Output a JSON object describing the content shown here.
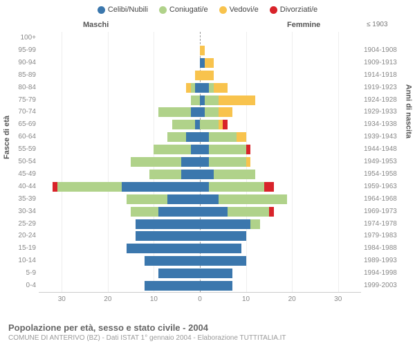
{
  "legend": [
    {
      "label": "Celibi/Nubili",
      "color": "#3b77ad"
    },
    {
      "label": "Coniugati/e",
      "color": "#b0d28a"
    },
    {
      "label": "Vedovi/e",
      "color": "#f8c34d"
    },
    {
      "label": "Divorziati/e",
      "color": "#d8232a"
    }
  ],
  "header": {
    "male": "Maschi",
    "female": "Femmine",
    "birth_top": "≤ 1903"
  },
  "y_title_left": "Fasce di età",
  "y_title_right": "Anni di nascita",
  "x_ticks": [
    30,
    20,
    10,
    0,
    10,
    20,
    30
  ],
  "x_max": 35,
  "title": "Popolazione per età, sesso e stato civile - 2004",
  "subtitle": "COMUNE DI ANTERIVO (BZ) - Dati ISTAT 1° gennaio 2004 - Elaborazione TUTTITALIA.IT",
  "colors": {
    "single": "#3b77ad",
    "married": "#b0d28a",
    "widowed": "#f8c34d",
    "divorced": "#d8232a"
  },
  "rows": [
    {
      "age": "100+",
      "birth": "",
      "m": [
        0,
        0,
        0,
        0
      ],
      "f": [
        0,
        0,
        0,
        0
      ]
    },
    {
      "age": "95-99",
      "birth": "1904-1908",
      "m": [
        0,
        0,
        0,
        0
      ],
      "f": [
        0,
        0,
        1,
        0
      ]
    },
    {
      "age": "90-94",
      "birth": "1909-1913",
      "m": [
        0,
        0,
        0,
        0
      ],
      "f": [
        1,
        0,
        2,
        0
      ]
    },
    {
      "age": "85-89",
      "birth": "1914-1918",
      "m": [
        0,
        0,
        1,
        0
      ],
      "f": [
        0,
        0,
        3,
        0
      ]
    },
    {
      "age": "80-84",
      "birth": "1919-1923",
      "m": [
        1,
        1,
        1,
        0
      ],
      "f": [
        2,
        1,
        3,
        0
      ]
    },
    {
      "age": "75-79",
      "birth": "1924-1928",
      "m": [
        0,
        2,
        0,
        0
      ],
      "f": [
        1,
        3,
        8,
        0
      ]
    },
    {
      "age": "70-74",
      "birth": "1929-1933",
      "m": [
        2,
        7,
        0,
        0
      ],
      "f": [
        1,
        3,
        3,
        0
      ]
    },
    {
      "age": "65-69",
      "birth": "1934-1938",
      "m": [
        1,
        5,
        0,
        0
      ],
      "f": [
        0,
        4,
        1,
        1
      ]
    },
    {
      "age": "60-64",
      "birth": "1939-1943",
      "m": [
        3,
        4,
        0,
        0
      ],
      "f": [
        2,
        6,
        2,
        0
      ]
    },
    {
      "age": "55-59",
      "birth": "1944-1948",
      "m": [
        2,
        8,
        0,
        0
      ],
      "f": [
        2,
        8,
        0,
        1
      ]
    },
    {
      "age": "50-54",
      "birth": "1949-1953",
      "m": [
        4,
        11,
        0,
        0
      ],
      "f": [
        2,
        8,
        1,
        0
      ]
    },
    {
      "age": "45-49",
      "birth": "1954-1958",
      "m": [
        4,
        7,
        0,
        0
      ],
      "f": [
        3,
        9,
        0,
        0
      ]
    },
    {
      "age": "40-44",
      "birth": "1959-1963",
      "m": [
        17,
        14,
        0,
        1
      ],
      "f": [
        2,
        12,
        0,
        2
      ]
    },
    {
      "age": "35-39",
      "birth": "1964-1968",
      "m": [
        7,
        9,
        0,
        0
      ],
      "f": [
        4,
        15,
        0,
        0
      ]
    },
    {
      "age": "30-34",
      "birth": "1969-1973",
      "m": [
        9,
        6,
        0,
        0
      ],
      "f": [
        6,
        9,
        0,
        1
      ]
    },
    {
      "age": "25-29",
      "birth": "1974-1978",
      "m": [
        14,
        0,
        0,
        0
      ],
      "f": [
        11,
        2,
        0,
        0
      ]
    },
    {
      "age": "20-24",
      "birth": "1979-1983",
      "m": [
        14,
        0,
        0,
        0
      ],
      "f": [
        10,
        0,
        0,
        0
      ]
    },
    {
      "age": "15-19",
      "birth": "1984-1988",
      "m": [
        16,
        0,
        0,
        0
      ],
      "f": [
        9,
        0,
        0,
        0
      ]
    },
    {
      "age": "10-14",
      "birth": "1989-1993",
      "m": [
        12,
        0,
        0,
        0
      ],
      "f": [
        10,
        0,
        0,
        0
      ]
    },
    {
      "age": "5-9",
      "birth": "1994-1998",
      "m": [
        9,
        0,
        0,
        0
      ],
      "f": [
        7,
        0,
        0,
        0
      ]
    },
    {
      "age": "0-4",
      "birth": "1999-2003",
      "m": [
        12,
        0,
        0,
        0
      ],
      "f": [
        7,
        0,
        0,
        0
      ]
    }
  ]
}
